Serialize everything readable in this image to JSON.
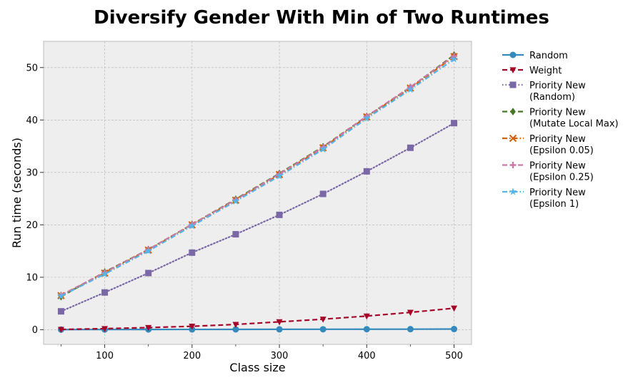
{
  "chart_data": {
    "type": "line",
    "title": "Diversify Gender With Min of Two Runtimes",
    "xlabel": "Class size",
    "ylabel": "Run time (seconds)",
    "xlim": [
      30,
      520
    ],
    "ylim": [
      -2.8,
      55
    ],
    "xticks": [
      100,
      200,
      300,
      400,
      500
    ],
    "yticks": [
      0,
      10,
      20,
      30,
      40,
      50
    ],
    "grid": true,
    "legend_position": "outside-right",
    "x": [
      50,
      100,
      150,
      200,
      250,
      300,
      350,
      400,
      450,
      500
    ],
    "series": [
      {
        "name": "Random",
        "color": "#348ABD",
        "marker": "circle",
        "linestyle": "solid",
        "values": [
          0.02,
          0.03,
          0.04,
          0.05,
          0.06,
          0.07,
          0.08,
          0.09,
          0.1,
          0.12
        ]
      },
      {
        "name": "Weight",
        "color": "#A60628",
        "marker": "triangle-down",
        "linestyle": "dashed",
        "values": [
          0.05,
          0.2,
          0.4,
          0.65,
          1.0,
          1.5,
          2.0,
          2.6,
          3.3,
          4.1
        ]
      },
      {
        "name": "Priority New\n(Random)",
        "color": "#7A68A6",
        "marker": "square",
        "linestyle": "dotted",
        "values": [
          3.5,
          7.1,
          10.8,
          14.7,
          18.2,
          21.9,
          25.9,
          30.2,
          34.7,
          39.4
        ]
      },
      {
        "name": "Priority New\n(Mutate Local Max)",
        "color": "#467821",
        "marker": "diamond",
        "linestyle": "dashed",
        "values": [
          6.3,
          11.0,
          15.3,
          20.1,
          24.9,
          29.8,
          34.9,
          40.7,
          46.2,
          52.4
        ]
      },
      {
        "name": "Priority New\n(Epsilon 0.05)",
        "color": "#D55E00",
        "marker": "x",
        "linestyle": "dashdot",
        "values": [
          6.5,
          10.8,
          15.2,
          20.0,
          24.7,
          29.6,
          34.7,
          40.6,
          46.1,
          52.1
        ]
      },
      {
        "name": "Priority New\n(Epsilon 0.25)",
        "color": "#CC79A7",
        "marker": "plus",
        "linestyle": "dashed",
        "values": [
          6.6,
          10.9,
          15.3,
          20.1,
          24.8,
          29.7,
          34.8,
          40.7,
          46.3,
          52.2
        ]
      },
      {
        "name": "Priority New\n(Epsilon 1)",
        "color": "#56B4E9",
        "marker": "star",
        "linestyle": "dashdot",
        "values": [
          6.4,
          10.6,
          15.0,
          19.8,
          24.5,
          29.3,
          34.4,
          40.3,
          45.8,
          51.6
        ]
      }
    ]
  }
}
